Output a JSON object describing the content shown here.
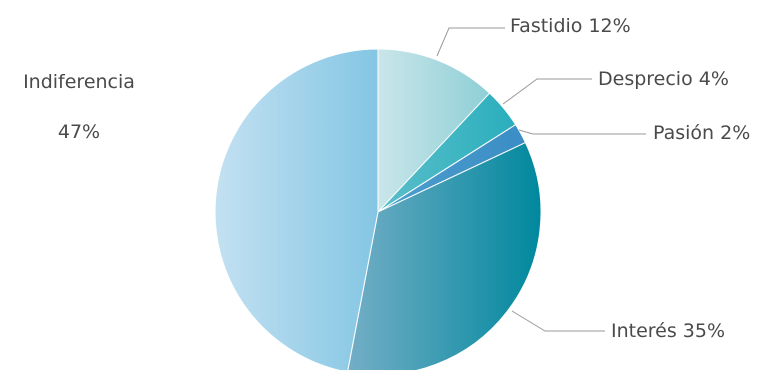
{
  "chart_data": {
    "type": "pie",
    "slices": [
      {
        "label": "Fastidio",
        "value": 12,
        "display": "Fastidio 12%",
        "color_start": "#c9e6ea",
        "color_end": "#8ecfd6"
      },
      {
        "label": "Desprecio",
        "value": 4,
        "display": "Desprecio 4%",
        "color_start": "#5bbfca",
        "color_end": "#2aaebd"
      },
      {
        "label": "Pasión",
        "value": 2,
        "display": "Pasión 2%",
        "color_start": "#4e9fcf",
        "color_end": "#3a8dc5"
      },
      {
        "label": "Interés",
        "value": 35,
        "display": "Interés 35%",
        "color_start": "#74aec6",
        "color_end": "#00889e"
      },
      {
        "label": "Indiferencia",
        "value": 47,
        "display_lines": [
          "Indiferencia",
          "47%"
        ],
        "color_start": "#c3e1f1",
        "color_end": "#84c6e4"
      }
    ],
    "start_angle": "top",
    "direction": "clockwise",
    "legend": "none",
    "label_line_color": "#9a9a9a"
  }
}
